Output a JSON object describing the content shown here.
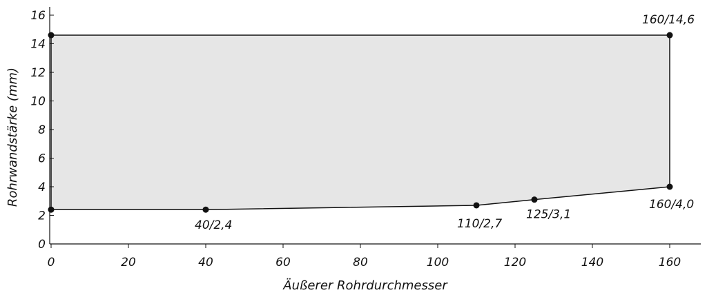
{
  "chart_data": {
    "type": "area",
    "xlabel": "Äußerer Rohrdurchmesser",
    "ylabel": "Rohrwandstärke (mm)",
    "xlim": [
      0,
      160
    ],
    "ylim": [
      0,
      16
    ],
    "x_ticks": [
      "0",
      "20",
      "40",
      "60",
      "80",
      "100",
      "120",
      "140",
      "160"
    ],
    "y_ticks": [
      "0",
      "2",
      "4",
      "6",
      "8",
      "10",
      "12",
      "14",
      "16"
    ],
    "fill_color": "#e6e6e6",
    "line_color": "#111111",
    "grid": false,
    "series": [
      {
        "points": [
          {
            "x": 0,
            "y": 14.6
          },
          {
            "x": 160,
            "y": 14.6,
            "label": "160/14,6"
          },
          {
            "x": 160,
            "y": 4.0,
            "label": "160/4,0"
          },
          {
            "x": 125,
            "y": 3.1,
            "label": "125/3,1"
          },
          {
            "x": 110,
            "y": 2.7,
            "label": "110/2,7"
          },
          {
            "x": 40,
            "y": 2.4,
            "label": "40/2,4"
          },
          {
            "x": 0,
            "y": 2.4
          }
        ]
      }
    ]
  }
}
